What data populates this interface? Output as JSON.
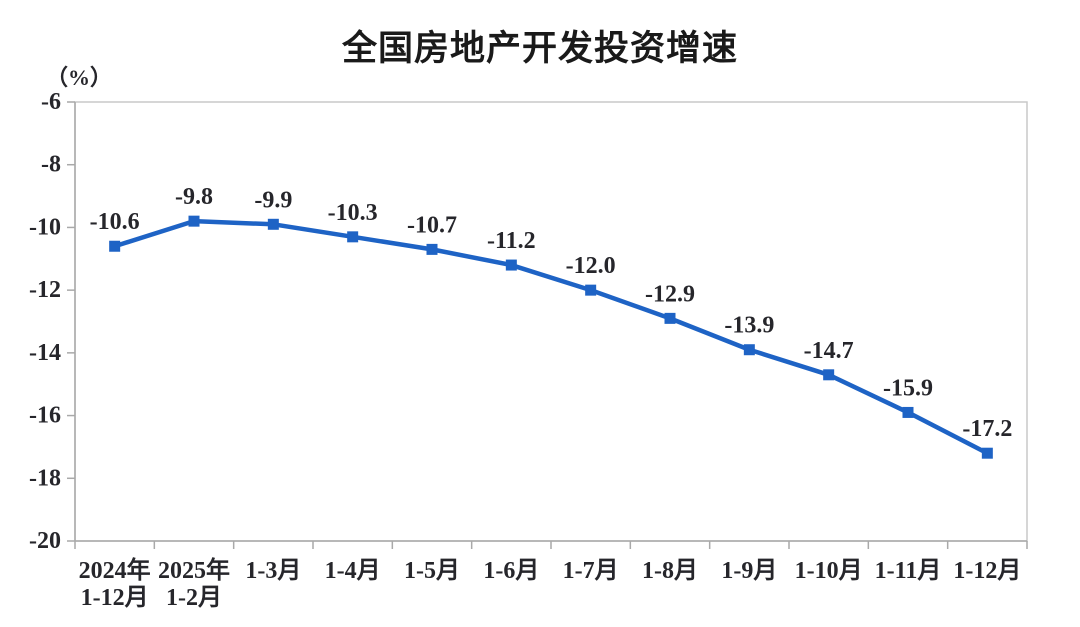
{
  "chart_data": {
    "type": "line",
    "title": "全国房地产开发投资增速",
    "unit_label": "（%）",
    "categories": [
      "2024年\n1-12月",
      "2025年\n1-2月",
      "1-3月",
      "1-4月",
      "1-5月",
      "1-6月",
      "1-7月",
      "1-8月",
      "1-9月",
      "1-10月",
      "1-11月",
      "1-12月"
    ],
    "series": [
      {
        "name": "全国房地产开发投资增速",
        "values": [
          -10.6,
          -9.8,
          -9.9,
          -10.3,
          -10.7,
          -11.2,
          -12.0,
          -12.9,
          -13.9,
          -14.7,
          -15.9,
          -17.2
        ],
        "labels": [
          "-10.6",
          "-9.8",
          "-9.9",
          "-10.3",
          "-10.7",
          "-11.2",
          "-12.0",
          "-12.9",
          "-13.9",
          "-14.7",
          "-15.9",
          "-17.2"
        ]
      }
    ],
    "ylim": [
      -20,
      -6
    ],
    "yticks": [
      -6,
      -8,
      -10,
      -12,
      -14,
      -16,
      -18,
      -20
    ],
    "ytick_labels": [
      "-6",
      "-8",
      "-10",
      "-12",
      "-14",
      "-16",
      "-18",
      "-20"
    ],
    "xlabel": "",
    "ylabel": "（%）",
    "grid": false,
    "legend_position": "none",
    "marker": "square",
    "line_color": "#1E63C5",
    "colors": {
      "title_text": "#1A1A1A",
      "axis_text": "#26262B",
      "axis_line": "#A9A9A9",
      "plot_border": "#C9C9C9",
      "background": "#FFFFFF"
    }
  }
}
